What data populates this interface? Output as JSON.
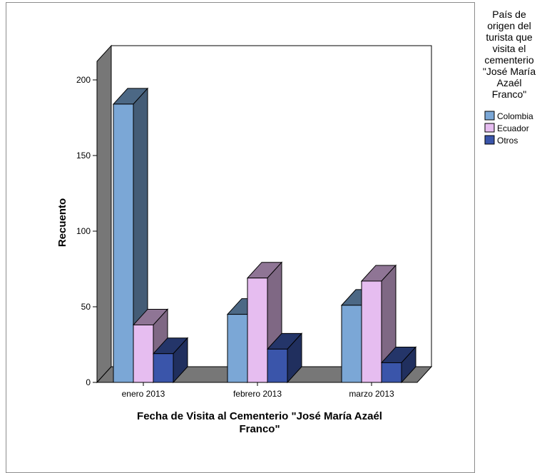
{
  "chart_data": {
    "type": "bar",
    "style": "3d-clustered",
    "categories": [
      "enero 2013",
      "febrero 2013",
      "marzo 2013"
    ],
    "series": [
      {
        "name": "Colombia",
        "values": [
          184,
          45,
          51
        ],
        "color": "#7ba7d6"
      },
      {
        "name": "Ecuador",
        "values": [
          38,
          69,
          67
        ],
        "color": "#e6bdf0"
      },
      {
        "name": "Otros",
        "values": [
          19,
          22,
          13
        ],
        "color": "#3a55aa"
      }
    ],
    "xlabel_lines": [
      "Fecha de Visita al Cementerio \"José María Azaél",
      "Franco\""
    ],
    "ylabel": "Recuento",
    "ylim": [
      0,
      200
    ],
    "yticks": [
      0,
      50,
      100,
      150,
      200
    ],
    "legend": {
      "title_lines": [
        "País de",
        "origen del",
        "turista que",
        "visita el",
        "cementerio",
        "\"José María",
        "Azaél",
        "Franco\""
      ],
      "position": "right"
    },
    "grid": false
  }
}
